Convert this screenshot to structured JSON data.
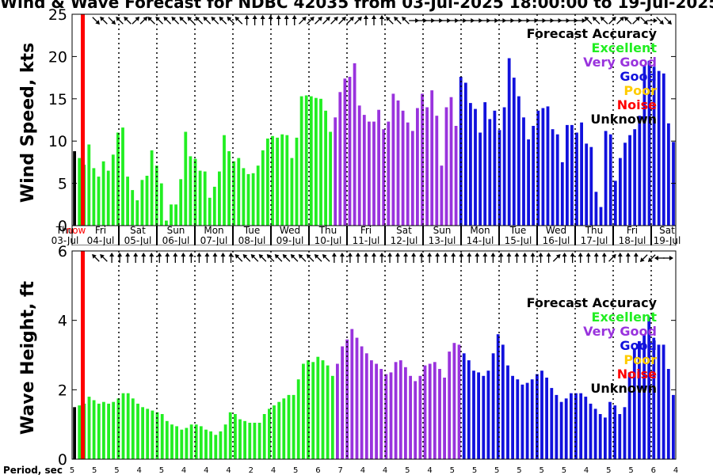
{
  "title": "Wind & Wave Forecast for NDBC 42035 from 03-Jul-2025 18:00:00 to 19-Jul-2025 1",
  "colors": {
    "excellent": "#22ee22",
    "very_good": "#9933dd",
    "good": "#1111dd",
    "poor": "#ffcc00",
    "noise": "#ff0000",
    "unknown": "#000000"
  },
  "legend": {
    "title": "Forecast Accuracy",
    "items": [
      {
        "label": "Excellent",
        "color": "#22ee22"
      },
      {
        "label": "Very Good",
        "color": "#9933dd"
      },
      {
        "label": "Good",
        "color": "#1111dd"
      },
      {
        "label": "Poor",
        "color": "#ffcc00"
      },
      {
        "label": "Noise",
        "color": "#ff0000"
      },
      {
        "label": "Unknown",
        "color": "#000000"
      }
    ]
  },
  "days": [
    {
      "name": "Thu",
      "date": "03-Jul"
    },
    {
      "name": "Fri",
      "date": "04-Jul"
    },
    {
      "name": "Sat",
      "date": "05-Jul"
    },
    {
      "name": "Sun",
      "date": "06-Jul"
    },
    {
      "name": "Mon",
      "date": "07-Jul"
    },
    {
      "name": "Tue",
      "date": "08-Jul"
    },
    {
      "name": "Wed",
      "date": "09-Jul"
    },
    {
      "name": "Thu",
      "date": "10-Jul"
    },
    {
      "name": "Fri",
      "date": "11-Jul"
    },
    {
      "name": "Sat",
      "date": "12-Jul"
    },
    {
      "name": "Sun",
      "date": "13-Jul"
    },
    {
      "name": "Mon",
      "date": "14-Jul"
    },
    {
      "name": "Tue",
      "date": "15-Jul"
    },
    {
      "name": "Wed",
      "date": "16-Jul"
    },
    {
      "name": "Thu",
      "date": "17-Jul"
    },
    {
      "name": "Fri",
      "date": "18-Jul"
    },
    {
      "name": "Sat",
      "date": "19-Jul"
    }
  ],
  "now_label": "now",
  "period_label": "Period, sec",
  "periods": [
    "5",
    "5",
    "5",
    "4",
    "5",
    "4",
    "4",
    "4",
    "2",
    "4",
    "5",
    "6",
    "7",
    "4",
    "4",
    "5",
    "4",
    "5",
    "5",
    "5",
    "5",
    "5",
    "5",
    "4",
    "5",
    "5",
    "6",
    "4"
  ],
  "chart_data": [
    {
      "type": "bar",
      "ylabel": "Wind Speed, kts",
      "ylim": [
        0,
        25
      ],
      "yticks": [
        0,
        5,
        10,
        15,
        20,
        25
      ],
      "x_start": "03-Jul 18:00",
      "x_step_hours": 3,
      "values": [
        8.8,
        8.0,
        7.2,
        9.6,
        6.8,
        5.8,
        7.6,
        6.5,
        8.4,
        11.0,
        11.6,
        5.8,
        4.2,
        3.0,
        5.4,
        5.9,
        8.9,
        7.1,
        5.0,
        0.6,
        2.5,
        2.5,
        5.5,
        11.1,
        8.2,
        7.9,
        6.5,
        6.4,
        3.3,
        4.6,
        6.4,
        10.7,
        8.8,
        7.6,
        8.0,
        6.8,
        6.1,
        6.2,
        7.1,
        8.9,
        10.3,
        10.6,
        10.4,
        10.8,
        10.7,
        8.0,
        10.4,
        15.3,
        15.4,
        15.3,
        15.1,
        15.0,
        13.6,
        11.1,
        12.8,
        15.8,
        17.4,
        17.6,
        19.2,
        14.2,
        13.1,
        12.3,
        12.3,
        13.7,
        11.4,
        12.3,
        15.6,
        14.8,
        13.6,
        12.2,
        11.2,
        13.9,
        15.6,
        14.0,
        16.0,
        13.0,
        7.1,
        14.0,
        15.2,
        11.8,
        17.6,
        16.9,
        14.5,
        13.8,
        11.0,
        14.6,
        12.6,
        13.6,
        11.3,
        14.0,
        19.8,
        17.5,
        15.3,
        12.8,
        10.2,
        11.8,
        13.6,
        13.9,
        14.1,
        11.4,
        10.8,
        7.5,
        11.9,
        11.9,
        11.0,
        12.2,
        9.7,
        9.3,
        4.0,
        2.2,
        11.2,
        10.8,
        5.3,
        8.0,
        9.8,
        10.7,
        11.4,
        13.0,
        18.9,
        19.5,
        18.8,
        18.3,
        18.0,
        12.1,
        9.9
      ],
      "accuracy": [
        "unknown",
        "excellent",
        "excellent",
        "excellent",
        "excellent",
        "excellent",
        "excellent",
        "excellent",
        "excellent",
        "excellent",
        "excellent",
        "excellent",
        "excellent",
        "excellent",
        "excellent",
        "excellent",
        "excellent",
        "excellent",
        "excellent",
        "excellent",
        "excellent",
        "excellent",
        "excellent",
        "excellent",
        "excellent",
        "excellent",
        "excellent",
        "excellent",
        "excellent",
        "excellent",
        "excellent",
        "excellent",
        "excellent",
        "excellent",
        "excellent",
        "excellent",
        "excellent",
        "excellent",
        "excellent",
        "excellent",
        "excellent",
        "excellent",
        "excellent",
        "excellent",
        "excellent",
        "excellent",
        "excellent",
        "excellent",
        "excellent",
        "excellent",
        "excellent",
        "excellent",
        "excellent",
        "excellent",
        "very_good",
        "very_good",
        "very_good",
        "very_good",
        "very_good",
        "very_good",
        "very_good",
        "very_good",
        "very_good",
        "very_good",
        "very_good",
        "very_good",
        "very_good",
        "very_good",
        "very_good",
        "very_good",
        "very_good",
        "very_good",
        "very_good",
        "very_good",
        "very_good",
        "very_good",
        "very_good",
        "very_good",
        "very_good",
        "very_good",
        "good",
        "good",
        "good",
        "good",
        "good",
        "good",
        "good",
        "good",
        "good",
        "good",
        "good",
        "good",
        "good",
        "good",
        "good",
        "good",
        "good",
        "good",
        "good",
        "good",
        "good",
        "good",
        "good",
        "good",
        "good",
        "good",
        "good",
        "good",
        "good",
        "good",
        "good",
        "good",
        "good",
        "good",
        "good",
        "good",
        "good",
        "good",
        "good",
        "good",
        "good",
        "good",
        "good",
        "good",
        "good"
      ]
    },
    {
      "type": "bar",
      "ylabel": "Wave Height, ft",
      "ylim": [
        0,
        6
      ],
      "yticks": [
        0,
        2,
        4,
        6
      ],
      "x_start": "03-Jul 18:00",
      "x_step_hours": 3,
      "values": [
        1.5,
        1.55,
        1.6,
        1.8,
        1.7,
        1.6,
        1.65,
        1.6,
        1.65,
        1.75,
        1.9,
        1.9,
        1.75,
        1.6,
        1.5,
        1.45,
        1.4,
        1.35,
        1.3,
        1.1,
        1.0,
        0.95,
        0.85,
        0.9,
        1.0,
        1.0,
        0.95,
        0.85,
        0.8,
        0.7,
        0.8,
        1.0,
        1.35,
        1.3,
        1.15,
        1.1,
        1.05,
        1.05,
        1.05,
        1.3,
        1.45,
        1.55,
        1.65,
        1.75,
        1.85,
        1.85,
        2.3,
        2.75,
        2.85,
        2.8,
        2.95,
        2.85,
        2.7,
        2.4,
        2.75,
        3.25,
        3.45,
        3.75,
        3.5,
        3.25,
        3.05,
        2.85,
        2.75,
        2.6,
        2.45,
        2.5,
        2.8,
        2.85,
        2.65,
        2.4,
        2.25,
        2.4,
        2.7,
        2.75,
        2.8,
        2.6,
        2.35,
        3.1,
        3.35,
        3.3,
        3.05,
        2.85,
        2.55,
        2.5,
        2.4,
        2.55,
        3.05,
        3.6,
        3.3,
        2.7,
        2.4,
        2.3,
        2.15,
        2.2,
        2.3,
        2.45,
        2.55,
        2.35,
        2.05,
        1.85,
        1.65,
        1.75,
        1.9,
        1.9,
        1.9,
        1.8,
        1.6,
        1.45,
        1.3,
        1.2,
        1.65,
        1.55,
        1.3,
        1.5,
        2.5,
        3.2,
        3.4,
        3.6,
        4.1,
        3.5,
        3.3,
        3.3,
        2.6,
        1.85
      ],
      "accuracy": [
        "unknown",
        "excellent",
        "excellent",
        "excellent",
        "excellent",
        "excellent",
        "excellent",
        "excellent",
        "excellent",
        "excellent",
        "excellent",
        "excellent",
        "excellent",
        "excellent",
        "excellent",
        "excellent",
        "excellent",
        "excellent",
        "excellent",
        "excellent",
        "excellent",
        "excellent",
        "excellent",
        "excellent",
        "excellent",
        "excellent",
        "excellent",
        "excellent",
        "excellent",
        "excellent",
        "excellent",
        "excellent",
        "excellent",
        "excellent",
        "excellent",
        "excellent",
        "excellent",
        "excellent",
        "excellent",
        "excellent",
        "excellent",
        "excellent",
        "excellent",
        "excellent",
        "excellent",
        "excellent",
        "excellent",
        "excellent",
        "excellent",
        "excellent",
        "excellent",
        "excellent",
        "excellent",
        "excellent",
        "very_good",
        "very_good",
        "very_good",
        "very_good",
        "very_good",
        "very_good",
        "very_good",
        "very_good",
        "very_good",
        "very_good",
        "very_good",
        "very_good",
        "very_good",
        "very_good",
        "very_good",
        "very_good",
        "very_good",
        "very_good",
        "very_good",
        "very_good",
        "very_good",
        "very_good",
        "very_good",
        "very_good",
        "very_good",
        "very_good",
        "good",
        "good",
        "good",
        "good",
        "good",
        "good",
        "good",
        "good",
        "good",
        "good",
        "good",
        "good",
        "good",
        "good",
        "good",
        "good",
        "good",
        "good",
        "good",
        "good",
        "good",
        "good",
        "good",
        "good",
        "good",
        "good",
        "good",
        "good",
        "good",
        "good",
        "good",
        "good",
        "good",
        "good",
        "good",
        "good",
        "good",
        "good",
        "good",
        "good",
        "good",
        "good",
        "good",
        "good",
        "good"
      ]
    }
  ],
  "wind_arrows_deg": [
    45,
    45,
    135,
    315,
    135,
    315,
    315,
    45,
    45,
    315,
    315,
    315,
    315,
    315,
    315,
    315,
    315,
    315,
    315,
    315,
    315,
    0,
    0,
    0,
    0,
    0,
    0,
    0,
    45,
    45,
    45,
    45,
    45,
    45,
    45,
    45,
    0,
    0,
    0,
    315,
    315,
    315,
    90,
    90,
    90,
    90,
    90,
    90,
    90,
    90,
    90,
    90,
    90,
    90,
    90,
    90,
    90,
    90,
    90,
    90,
    90,
    90,
    90,
    90,
    315,
    315,
    315,
    45,
    45,
    315,
    45,
    135,
    90,
    135,
    135
  ],
  "wave_arrows_deg": [
    315,
    0,
    315,
    315,
    0,
    0,
    0,
    0,
    0,
    0,
    0,
    0,
    0,
    0,
    0,
    0,
    0,
    0,
    0,
    0,
    315,
    315,
    315,
    315,
    315,
    315,
    315,
    315,
    315,
    315,
    315,
    315,
    0,
    0,
    0,
    0,
    0,
    0,
    0,
    0,
    0,
    0,
    0,
    0,
    0,
    0,
    0,
    0,
    0,
    0,
    0,
    0,
    0,
    0,
    0,
    0,
    0,
    0,
    0,
    0,
    45,
    0,
    0,
    0,
    0,
    0,
    0,
    45,
    0,
    0,
    0,
    225,
    225,
    270,
    90
  ]
}
